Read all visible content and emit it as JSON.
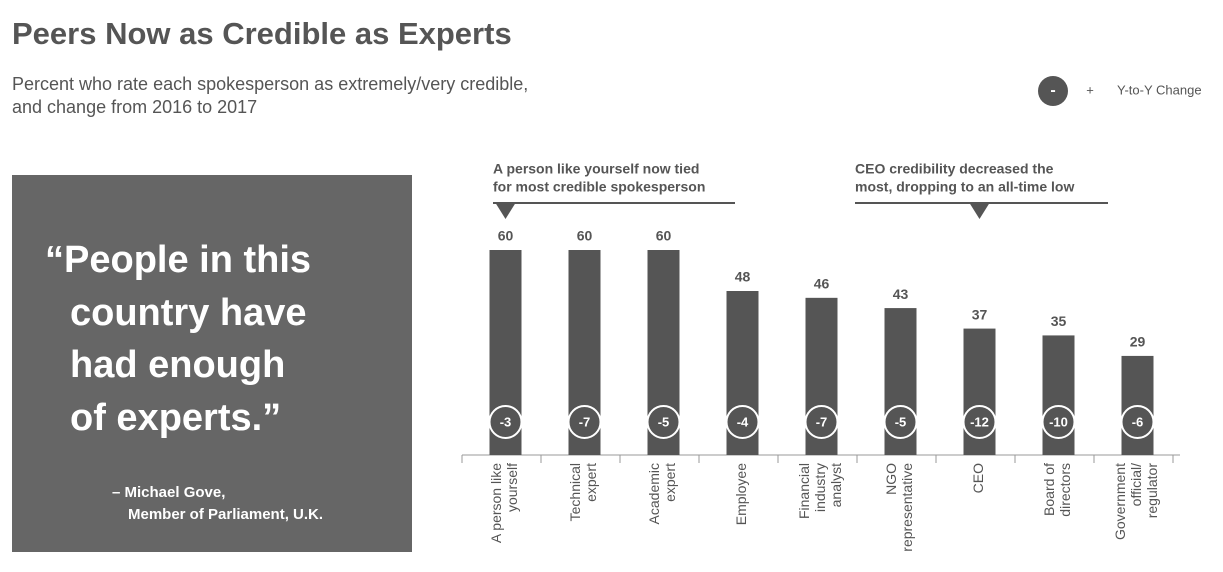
{
  "chart_data": {
    "type": "bar",
    "title": "Peers Now as Credible as Experts",
    "subtitle": [
      "Percent who rate each spokesperson as extremely/very credible,",
      "and change from 2016 to 2017"
    ],
    "legend": {
      "minus": "-",
      "plus": "+",
      "label": "Y-to-Y Change"
    },
    "categories": [
      [
        "A person like",
        "yourself"
      ],
      [
        "Technical",
        "expert"
      ],
      [
        "Academic",
        "expert"
      ],
      [
        "Employee"
      ],
      [
        "Financial",
        "industry",
        "analyst"
      ],
      [
        "NGO",
        "representative"
      ],
      [
        "CEO"
      ],
      [
        "Board of",
        "directors"
      ],
      [
        "Government",
        "official/",
        "regulator"
      ]
    ],
    "values": [
      60,
      60,
      60,
      48,
      46,
      43,
      37,
      35,
      29
    ],
    "changes": [
      -3,
      -7,
      -5,
      -4,
      -7,
      -5,
      -12,
      -10,
      -6
    ],
    "color": "#555555",
    "ylim": [
      0,
      60
    ],
    "annotations": [
      {
        "lines": [
          "A person like yourself now tied",
          "for most credible spokesperson"
        ],
        "category": 0
      },
      {
        "lines": [
          "CEO credibility decreased the",
          "most, dropping to an all-time low"
        ],
        "category": 6
      }
    ]
  },
  "quote": {
    "lines": [
      "“People in this",
      "country have",
      "had enough",
      "of experts.”"
    ],
    "attribution": [
      "– Michael Gove,",
      "Member of Parliament, U.K."
    ]
  }
}
